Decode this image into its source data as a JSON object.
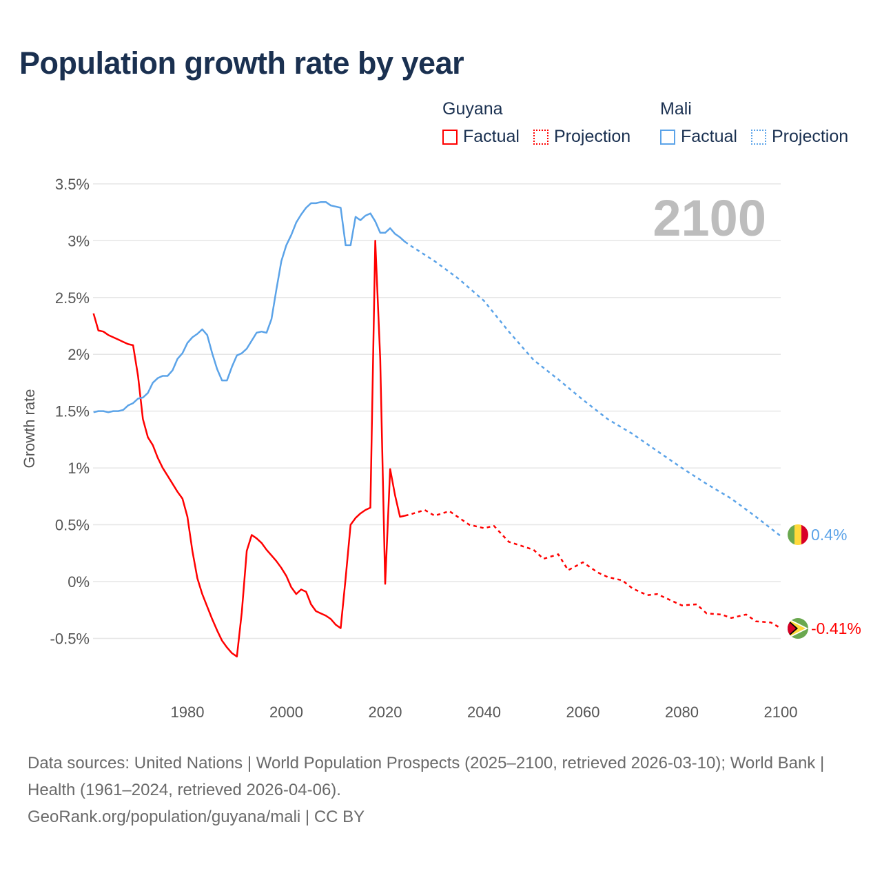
{
  "title": "Population growth rate by year",
  "legend": {
    "groups": [
      {
        "name": "Guyana",
        "color": "#ff0000",
        "factual": "Factual",
        "projection": "Projection"
      },
      {
        "name": "Mali",
        "color": "#5ba3e8",
        "factual": "Factual",
        "projection": "Projection"
      }
    ]
  },
  "year_overlay": "2100",
  "footer": {
    "sources": "Data sources: United Nations | World Population Prospects (2025–2100, retrieved 2026-03-10); World Bank | Health (1961–2024, retrieved 2026-04-06).",
    "credit": "GeoRank.org/population/guyana/mali | CC BY"
  },
  "chart_data": {
    "type": "line",
    "title": "Population growth rate by year",
    "xlabel": "",
    "ylabel": "Growth rate",
    "xlim": [
      1961,
      2100
    ],
    "ylim": [
      -0.75,
      3.6
    ],
    "x_ticks": [
      1980,
      2000,
      2020,
      2040,
      2060,
      2080,
      2100
    ],
    "y_ticks": [
      {
        "value": 3.5,
        "label": "3.5%"
      },
      {
        "value": 3,
        "label": "3%"
      },
      {
        "value": 2.5,
        "label": "2.5%"
      },
      {
        "value": 2,
        "label": "2%"
      },
      {
        "value": 1.5,
        "label": "1.5%"
      },
      {
        "value": 1,
        "label": "1%"
      },
      {
        "value": 0.5,
        "label": "0.5%"
      },
      {
        "value": 0,
        "label": "0%"
      },
      {
        "value": -0.5,
        "label": "-0.5%"
      }
    ],
    "grid": true,
    "legend_position": "top-right",
    "series": [
      {
        "name": "Guyana",
        "color": "#ff0000",
        "end_label": "-0.41%",
        "factual": {
          "x": [
            1961,
            1962,
            1963,
            1964,
            1965,
            1966,
            1967,
            1968,
            1969,
            1970,
            1971,
            1972,
            1973,
            1974,
            1975,
            1976,
            1977,
            1978,
            1979,
            1980,
            1981,
            1982,
            1983,
            1984,
            1985,
            1986,
            1987,
            1988,
            1989,
            1990,
            1991,
            1992,
            1993,
            1994,
            1995,
            1996,
            1997,
            1998,
            1999,
            2000,
            2001,
            2002,
            2003,
            2004,
            2005,
            2006,
            2007,
            2008,
            2009,
            2010,
            2011,
            2012,
            2013,
            2014,
            2015,
            2016,
            2017,
            2018,
            2019,
            2020,
            2021,
            2022,
            2023,
            2024
          ],
          "y": [
            2.36,
            2.21,
            2.2,
            2.17,
            2.15,
            2.13,
            2.11,
            2.09,
            2.08,
            1.81,
            1.43,
            1.27,
            1.2,
            1.09,
            1.0,
            0.93,
            0.86,
            0.79,
            0.73,
            0.57,
            0.27,
            0.03,
            -0.11,
            -0.22,
            -0.33,
            -0.43,
            -0.52,
            -0.58,
            -0.63,
            -0.66,
            -0.27,
            0.27,
            0.41,
            0.38,
            0.34,
            0.28,
            0.23,
            0.18,
            0.12,
            0.05,
            -0.05,
            -0.11,
            -0.07,
            -0.09,
            -0.2,
            -0.26,
            -0.28,
            -0.3,
            -0.33,
            -0.38,
            -0.41,
            0.03,
            0.5,
            0.56,
            0.6,
            0.63,
            0.65,
            3.0,
            1.96,
            -0.02,
            0.99,
            0.76,
            0.57,
            0.58
          ]
        },
        "projection": {
          "x": [
            2024,
            2025,
            2028,
            2030,
            2033,
            2035,
            2037,
            2040,
            2042,
            2045,
            2050,
            2052,
            2055,
            2057,
            2060,
            2063,
            2065,
            2068,
            2070,
            2073,
            2075,
            2080,
            2083,
            2085,
            2088,
            2090,
            2093,
            2095,
            2098,
            2100
          ],
          "y": [
            0.58,
            0.59,
            0.63,
            0.58,
            0.62,
            0.56,
            0.5,
            0.47,
            0.49,
            0.35,
            0.28,
            0.2,
            0.24,
            0.1,
            0.17,
            0.08,
            0.04,
            0.01,
            -0.06,
            -0.12,
            -0.11,
            -0.21,
            -0.2,
            -0.28,
            -0.29,
            -0.32,
            -0.29,
            -0.35,
            -0.36,
            -0.41
          ]
        }
      },
      {
        "name": "Mali",
        "color": "#5ba3e8",
        "end_label": "0.4%",
        "factual": {
          "x": [
            1961,
            1962,
            1963,
            1964,
            1965,
            1966,
            1967,
            1968,
            1969,
            1970,
            1971,
            1972,
            1973,
            1974,
            1975,
            1976,
            1977,
            1978,
            1979,
            1980,
            1981,
            1982,
            1983,
            1984,
            1985,
            1986,
            1987,
            1988,
            1989,
            1990,
            1991,
            1992,
            1993,
            1994,
            1995,
            1996,
            1997,
            1998,
            1999,
            2000,
            2001,
            2002,
            2003,
            2004,
            2005,
            2006,
            2007,
            2008,
            2009,
            2010,
            2011,
            2012,
            2013,
            2014,
            2015,
            2016,
            2017,
            2018,
            2019,
            2020,
            2021,
            2022,
            2023,
            2024
          ],
          "y": [
            1.49,
            1.5,
            1.5,
            1.49,
            1.5,
            1.5,
            1.51,
            1.55,
            1.57,
            1.61,
            1.62,
            1.66,
            1.75,
            1.79,
            1.81,
            1.81,
            1.86,
            1.96,
            2.01,
            2.1,
            2.15,
            2.18,
            2.22,
            2.17,
            2.01,
            1.87,
            1.77,
            1.77,
            1.89,
            1.99,
            2.01,
            2.05,
            2.12,
            2.19,
            2.2,
            2.19,
            2.31,
            2.57,
            2.82,
            2.96,
            3.05,
            3.16,
            3.23,
            3.29,
            3.33,
            3.33,
            3.34,
            3.34,
            3.31,
            3.3,
            3.29,
            2.96,
            2.96,
            3.21,
            3.18,
            3.22,
            3.24,
            3.17,
            3.07,
            3.07,
            3.11,
            3.06,
            3.03,
            2.99
          ]
        },
        "projection": {
          "x": [
            2024,
            2025,
            2030,
            2035,
            2040,
            2045,
            2050,
            2055,
            2060,
            2065,
            2070,
            2075,
            2080,
            2085,
            2090,
            2095,
            2100
          ],
          "y": [
            2.99,
            2.96,
            2.82,
            2.66,
            2.47,
            2.2,
            1.95,
            1.78,
            1.6,
            1.43,
            1.3,
            1.15,
            1.0,
            0.86,
            0.73,
            0.57,
            0.4
          ]
        }
      }
    ]
  }
}
